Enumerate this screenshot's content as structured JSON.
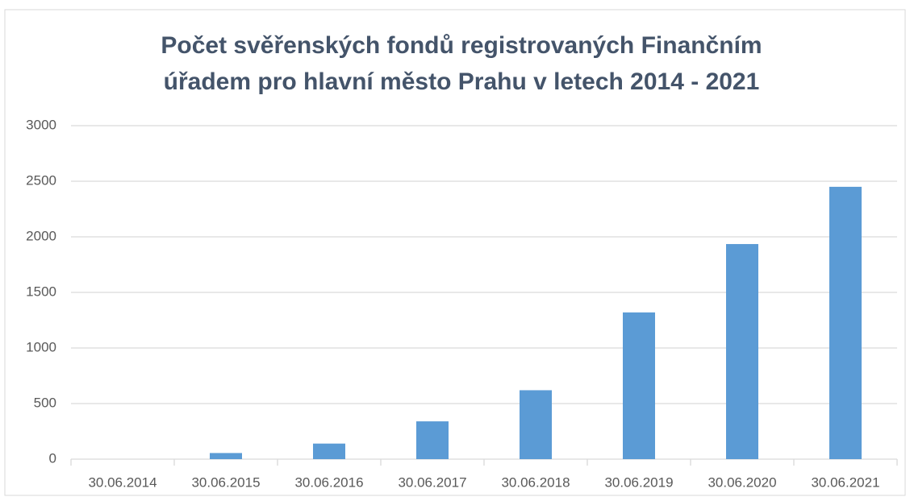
{
  "chart_data": {
    "type": "bar",
    "title": [
      "Počet svěřenských fondů registrovaných Finančním",
      "úřadem pro hlavní město Prahu v letech 2014 - 2021"
    ],
    "categories": [
      "30.06.2014",
      "30.06.2015",
      "30.06.2016",
      "30.06.2017",
      "30.06.2018",
      "30.06.2019",
      "30.06.2020",
      "30.06.2021"
    ],
    "values": [
      0,
      55,
      140,
      340,
      620,
      1320,
      1935,
      2450
    ],
    "color": "#5b9bd5",
    "ylim": [
      0,
      3000
    ],
    "yticks": [
      0,
      500,
      1000,
      1500,
      2000,
      2500,
      3000
    ],
    "grid": true
  }
}
